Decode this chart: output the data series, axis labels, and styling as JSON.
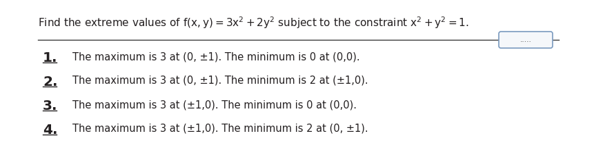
{
  "title_math": "Find the extreme values of $\\mathregular{f(x,y)=3x^2+2y^2}$ subject to the constraint $\\mathregular{x^2+y^2=1}$.",
  "options": [
    {
      "num": "1.",
      "text": "The maximum is 3 at (0, ±1). The minimum is 0 at (0,0)."
    },
    {
      "num": "2.",
      "text": "The maximum is 3 at (0, ±1). The minimum is 2 at (±1,0)."
    },
    {
      "num": "3.",
      "text": "The maximum is 3 at (±1,0). The minimum is 0 at (0,0)."
    },
    {
      "num": "4.",
      "text": "The maximum is 3 at (±1,0). The minimum is 2 at (0, ±1)."
    }
  ],
  "bg_color": "#ffffff",
  "text_color": "#231f20",
  "line_color": "#3a3a3a",
  "num_color": "#231f20",
  "title_fontsize": 11.0,
  "option_num_fontsize": 14.5,
  "option_text_fontsize": 10.5,
  "dots_text": ".....",
  "dots_fontsize": 7.5,
  "box_edge_color": "#7a9abf",
  "box_face_color": "#f5f7fa"
}
